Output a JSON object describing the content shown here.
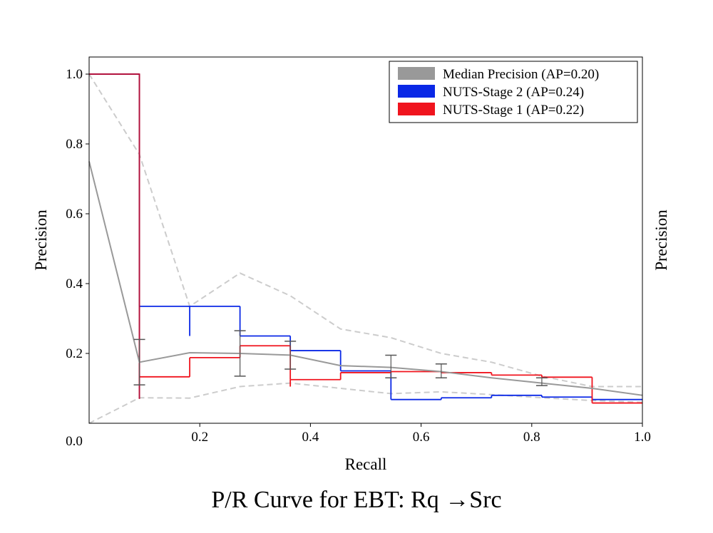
{
  "title": "P/R Curve for EBT: Rq →Src",
  "chart_data": {
    "type": "line",
    "title": "P/R Curve for EBT: Rq →Src",
    "xlabel": "Recall",
    "ylabel": "Precision",
    "ylabel_right": "Precision",
    "xlim": [
      0,
      1.0
    ],
    "ylim": [
      0,
      1.05
    ],
    "xticks": [
      0.2,
      0.4,
      0.6,
      0.8,
      1.0
    ],
    "xtick_labels": [
      "0.2",
      "0.4",
      "0.6",
      "0.8",
      "1.0"
    ],
    "yticks": [
      0.2,
      0.4,
      0.6,
      0.8,
      1.0
    ],
    "ytick_labels": [
      "0.2",
      "0.4",
      "0.6",
      "0.8",
      "1.0"
    ],
    "origin_label": "0.0",
    "legend_position": "top-right",
    "grid": false,
    "median": {
      "name": "Median Precision (AP=0.20)",
      "color": "#999999",
      "x": [
        0.0,
        0.0909,
        0.1818,
        0.2727,
        0.3636,
        0.4545,
        0.5455,
        0.6364,
        0.7273,
        0.8182,
        0.9091,
        1.0
      ],
      "y": [
        0.75,
        0.175,
        0.202,
        0.2,
        0.195,
        0.165,
        0.16,
        0.148,
        0.13,
        0.115,
        0.1,
        0.08
      ]
    },
    "band_upper": {
      "color": "#cccccc",
      "x": [
        0.0,
        0.0909,
        0.1818,
        0.2727,
        0.3636,
        0.4545,
        0.5455,
        0.6364,
        0.7273,
        0.8182,
        0.9091,
        1.0
      ],
      "y": [
        1.0,
        0.77,
        0.335,
        0.43,
        0.365,
        0.27,
        0.245,
        0.2,
        0.175,
        0.135,
        0.105,
        0.105
      ]
    },
    "band_lower": {
      "color": "#cccccc",
      "x": [
        0.0,
        0.0909,
        0.1818,
        0.2727,
        0.3636,
        0.4545,
        0.5455,
        0.6364,
        0.7273,
        0.8182,
        0.9091,
        1.0
      ],
      "y": [
        0.0,
        0.073,
        0.072,
        0.105,
        0.115,
        0.1,
        0.085,
        0.09,
        0.082,
        0.073,
        0.065,
        0.06
      ]
    },
    "error_bars": [
      {
        "x": 0.0909,
        "low": 0.11,
        "high": 0.24
      },
      {
        "x": 0.2727,
        "low": 0.135,
        "high": 0.265
      },
      {
        "x": 0.3636,
        "low": 0.155,
        "high": 0.235
      },
      {
        "x": 0.5455,
        "low": 0.13,
        "high": 0.195
      },
      {
        "x": 0.6364,
        "low": 0.13,
        "high": 0.17
      },
      {
        "x": 0.8182,
        "low": 0.108,
        "high": 0.13
      }
    ],
    "series": [
      {
        "name": "NUTS-Stage 2 (AP=0.24)",
        "color": "#0a28e6",
        "steps": [
          {
            "x0": 0.0,
            "x1": 0.0909,
            "y": 1.0
          },
          {
            "x0": 0.0909,
            "x1": 0.1818,
            "y": 0.335
          },
          {
            "x0": 0.1818,
            "x1": 0.2727,
            "y": 0.335,
            "y_drop": 0.25
          },
          {
            "x0": 0.2727,
            "x1": 0.3636,
            "y": 0.25
          },
          {
            "x0": 0.3636,
            "x1": 0.4545,
            "y": 0.208
          },
          {
            "x0": 0.4545,
            "x1": 0.5455,
            "y": 0.15
          },
          {
            "x0": 0.5455,
            "x1": 0.6364,
            "y": 0.068
          },
          {
            "x0": 0.6364,
            "x1": 0.7273,
            "y": 0.073
          },
          {
            "x0": 0.7273,
            "x1": 0.8182,
            "y": 0.08
          },
          {
            "x0": 0.8182,
            "x1": 0.9091,
            "y": 0.075
          },
          {
            "x0": 0.9091,
            "x1": 1.0,
            "y": 0.068
          }
        ]
      },
      {
        "name": "NUTS-Stage 1 (AP=0.22)",
        "color": "#f0141e",
        "steps": [
          {
            "x0": 0.0,
            "x1": 0.0909,
            "y": 1.0
          },
          {
            "x0": 0.0909,
            "x1": 0.1818,
            "y": 0.133,
            "y_drop": 0.07
          },
          {
            "x0": 0.1818,
            "x1": 0.2727,
            "y": 0.188
          },
          {
            "x0": 0.2727,
            "x1": 0.3636,
            "y": 0.222
          },
          {
            "x0": 0.3636,
            "x1": 0.4545,
            "y": 0.125,
            "y_drop": 0.105
          },
          {
            "x0": 0.4545,
            "x1": 0.5455,
            "y": 0.145
          },
          {
            "x0": 0.5455,
            "x1": 0.6364,
            "y": 0.148
          },
          {
            "x0": 0.6364,
            "x1": 0.7273,
            "y": 0.145
          },
          {
            "x0": 0.7273,
            "x1": 0.8182,
            "y": 0.138
          },
          {
            "x0": 0.8182,
            "x1": 0.9091,
            "y": 0.132
          },
          {
            "x0": 0.9091,
            "x1": 1.0,
            "y": 0.058
          }
        ]
      }
    ]
  }
}
